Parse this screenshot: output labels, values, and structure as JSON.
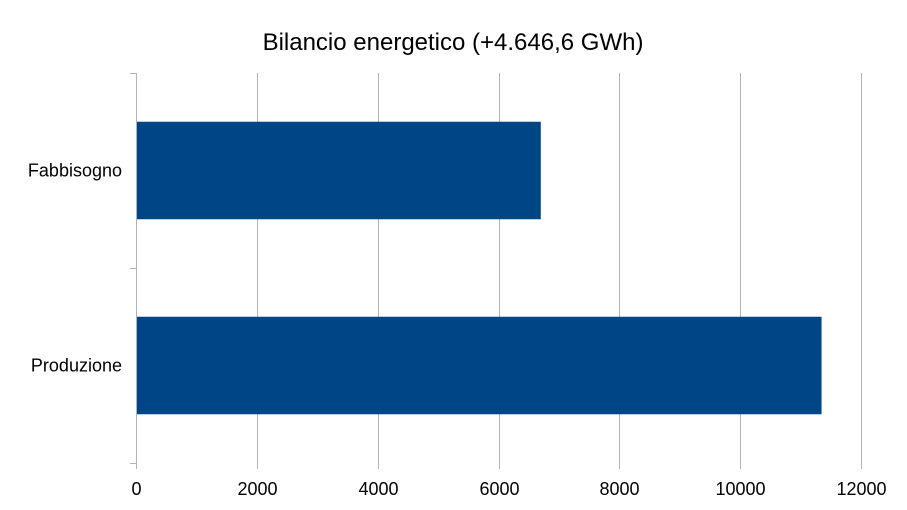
{
  "chart_data": {
    "type": "bar",
    "orientation": "horizontal",
    "title": "Bilancio energetico (+4.646,6 GWh)",
    "categories": [
      "Fabbisogno",
      "Produzione"
    ],
    "values": [
      6700,
      11347
    ],
    "xlim": [
      0,
      12000
    ],
    "x_ticks": [
      "0",
      "2000",
      "4000",
      "6000",
      "8000",
      "10000",
      "12000"
    ],
    "xlabel": "",
    "ylabel": "",
    "grid": true,
    "legend": "none",
    "bar_color": "#004586"
  }
}
